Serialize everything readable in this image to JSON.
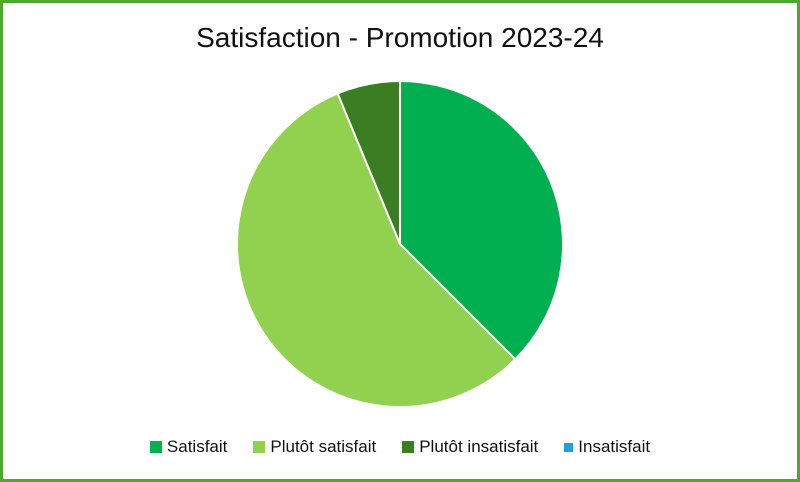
{
  "chart_data": {
    "type": "pie",
    "title": "Satisfaction - Promotion 2023-24",
    "categories": [
      "Satisfait",
      "Plutôt satisfait",
      "Plutôt insatisfait",
      "Insatisfait"
    ],
    "values": [
      37.5,
      56.25,
      6.25,
      0
    ],
    "colors": [
      "#00b050",
      "#92d050",
      "#3a7d22",
      "#1ea0e0"
    ],
    "legend_position": "bottom"
  }
}
